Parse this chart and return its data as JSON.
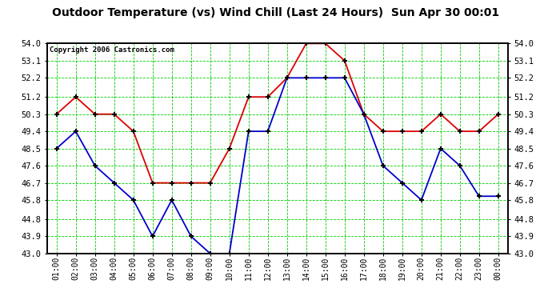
{
  "title": "Outdoor Temperature (vs) Wind Chill (Last 24 Hours)  Sun Apr 30 00:01",
  "copyright": "Copyright 2006 Castronics.com",
  "x_labels": [
    "01:00",
    "02:00",
    "03:00",
    "04:00",
    "05:00",
    "06:00",
    "07:00",
    "08:00",
    "09:00",
    "10:00",
    "11:00",
    "12:00",
    "13:00",
    "14:00",
    "15:00",
    "16:00",
    "17:00",
    "18:00",
    "19:00",
    "20:00",
    "21:00",
    "22:00",
    "23:00",
    "00:00"
  ],
  "temp_red": [
    50.3,
    51.2,
    50.3,
    50.3,
    49.4,
    46.7,
    46.7,
    46.7,
    46.7,
    48.5,
    51.2,
    51.2,
    52.2,
    54.0,
    54.0,
    53.1,
    50.3,
    49.4,
    49.4,
    49.4,
    50.3,
    49.4,
    49.4,
    50.3
  ],
  "wind_blue": [
    48.5,
    49.4,
    47.6,
    46.7,
    45.8,
    43.9,
    45.8,
    43.9,
    43.0,
    43.0,
    49.4,
    49.4,
    52.2,
    52.2,
    52.2,
    52.2,
    50.3,
    47.6,
    46.7,
    45.8,
    48.5,
    47.6,
    46.0,
    46.0
  ],
  "ylim_min": 43.0,
  "ylim_max": 54.0,
  "yticks": [
    43.0,
    43.9,
    44.8,
    45.8,
    46.7,
    47.6,
    48.5,
    49.4,
    50.3,
    51.2,
    52.2,
    53.1,
    54.0
  ],
  "bg_color": "#ffffff",
  "grid_color": "#00cc00",
  "red_color": "#dd0000",
  "blue_color": "#0000cc",
  "title_color": "#000000",
  "outer_bg": "#ffffff",
  "border_color": "#000000"
}
